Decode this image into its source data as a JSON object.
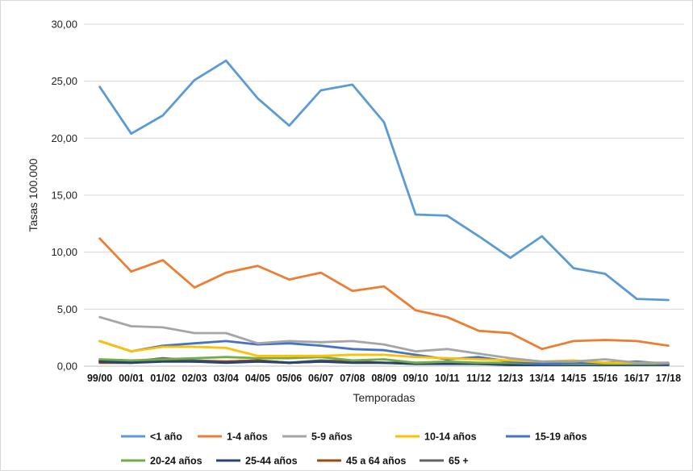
{
  "chart_data": {
    "type": "line",
    "xlabel": "Temporadas",
    "ylabel": "Tasas 100.000",
    "ylim": [
      0,
      30
    ],
    "yticks": [
      "0,00",
      "5,00",
      "10,00",
      "15,00",
      "20,00",
      "25,00",
      "30,00"
    ],
    "categories": [
      "99/00",
      "00/01",
      "01/02",
      "02/03",
      "03/04",
      "04/05",
      "05/06",
      "06/07",
      "07/08",
      "08/09",
      "09/10",
      "10/11",
      "11/12",
      "12/13",
      "13/14",
      "14/15",
      "15/16",
      "16/17",
      "17/18"
    ],
    "grid": true,
    "legend_position": "bottom",
    "series": [
      {
        "name": "<1 año",
        "color": "#5B9BD5",
        "values": [
          24.5,
          20.4,
          22.0,
          25.1,
          26.8,
          23.5,
          21.1,
          24.2,
          24.7,
          21.4,
          13.3,
          13.2,
          11.4,
          9.5,
          11.4,
          8.6,
          8.1,
          5.9,
          5.8
        ]
      },
      {
        "name": "1-4 años",
        "color": "#ED7D31",
        "values": [
          11.2,
          8.3,
          9.3,
          6.9,
          8.2,
          8.8,
          7.6,
          8.2,
          6.6,
          7.0,
          4.9,
          4.3,
          3.1,
          2.9,
          1.5,
          2.2,
          2.3,
          2.2,
          1.8
        ]
      },
      {
        "name": "5-9 años",
        "color": "#A5A5A5",
        "values": [
          4.3,
          3.5,
          3.4,
          2.9,
          2.9,
          2.0,
          2.2,
          2.1,
          2.2,
          1.9,
          1.3,
          1.5,
          1.1,
          0.7,
          0.4,
          0.4,
          0.6,
          0.3,
          0.3
        ]
      },
      {
        "name": "10-14 años",
        "color": "#FFC000",
        "values": [
          2.2,
          1.3,
          1.7,
          1.7,
          1.6,
          0.9,
          0.9,
          0.9,
          1.0,
          1.0,
          0.8,
          0.7,
          0.6,
          0.5,
          0.4,
          0.5,
          0.3,
          0.3,
          0.3
        ]
      },
      {
        "name": "15-19 años",
        "color": "#4472C4",
        "values": [
          2.2,
          1.3,
          1.8,
          2.0,
          2.2,
          1.9,
          2.0,
          1.8,
          1.5,
          1.4,
          1.0,
          0.6,
          0.8,
          0.4,
          0.2,
          0.3,
          0.3,
          0.4,
          0.2
        ]
      },
      {
        "name": "20-24 años",
        "color": "#70AD47",
        "values": [
          0.6,
          0.5,
          0.6,
          0.7,
          0.8,
          0.7,
          0.7,
          0.8,
          0.5,
          0.6,
          0.3,
          0.4,
          0.3,
          0.3,
          0.2,
          0.2,
          0.2,
          0.2,
          0.2
        ]
      },
      {
        "name": "25-44 años",
        "color": "#264478",
        "values": [
          0.4,
          0.3,
          0.4,
          0.4,
          0.3,
          0.4,
          0.3,
          0.4,
          0.3,
          0.3,
          0.2,
          0.2,
          0.2,
          0.1,
          0.1,
          0.1,
          0.1,
          0.1,
          0.1
        ]
      },
      {
        "name": "45 a 64 años",
        "color": "#9E480E",
        "values": [
          0.3,
          0.3,
          0.5,
          0.4,
          0.4,
          0.5,
          0.3,
          0.4,
          0.4,
          0.3,
          0.3,
          0.3,
          0.2,
          0.2,
          0.2,
          0.2,
          0.2,
          0.2,
          0.3
        ]
      },
      {
        "name": "65 +",
        "color": "#636363",
        "values": [
          0.5,
          0.4,
          0.7,
          0.5,
          0.4,
          0.5,
          0.3,
          0.5,
          0.4,
          0.3,
          0.2,
          0.3,
          0.2,
          0.2,
          0.1,
          0.2,
          0.1,
          0.2,
          0.2
        ]
      }
    ]
  }
}
